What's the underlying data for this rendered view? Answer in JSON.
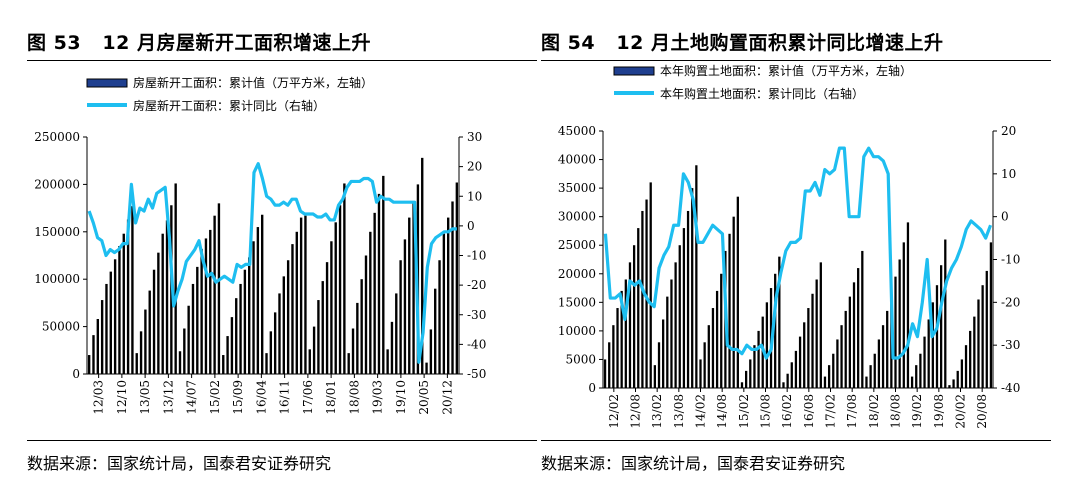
{
  "colors": {
    "bar": "#000000",
    "line": "#1EBEF0",
    "legend_bar_fill": "#1F3F8F"
  },
  "left": {
    "title_num": "图 53",
    "title_text": "12 月房屋新开工面积增速上升",
    "source": "数据来源：国家统计局，国泰君安证券研究",
    "chart_data": {
      "type": "bar+line",
      "legend": [
        "房屋新开工面积：累计值（万平方米，左轴）",
        "房屋新开工面积：累计同比（右轴）"
      ],
      "y_left": {
        "min": 0,
        "max": 250000,
        "ticks": [
          0,
          50000,
          100000,
          150000,
          200000,
          250000
        ]
      },
      "y_right": {
        "min": -50,
        "max": 30,
        "ticks": [
          -50,
          -40,
          -30,
          -20,
          -10,
          0,
          10,
          20,
          30
        ]
      },
      "x_tick_labels": [
        "12/03",
        "12/10",
        "13/05",
        "13/12",
        "14/07",
        "15/02",
        "15/09",
        "16/04",
        "16/11",
        "17/06",
        "18/01",
        "18/08",
        "19/03",
        "19/10",
        "20/05",
        "20/12"
      ],
      "bar_values": [
        20000,
        41000,
        58000,
        78000,
        95000,
        108000,
        121000,
        135000,
        148000,
        163000,
        177000,
        22000,
        45000,
        68000,
        88000,
        110000,
        128000,
        148000,
        162000,
        178000,
        201000,
        24000,
        48000,
        72000,
        95000,
        113000,
        132000,
        143000,
        152000,
        167000,
        180000,
        20000,
        40000,
        60000,
        80000,
        95000,
        110000,
        123000,
        140000,
        155000,
        168000,
        22000,
        45000,
        65000,
        85000,
        103000,
        120000,
        137000,
        150000,
        165000,
        167000,
        26000,
        50000,
        78000,
        98000,
        118000,
        140000,
        160000,
        178000,
        201000,
        22000,
        48000,
        75000,
        100000,
        125000,
        150000,
        170000,
        190000,
        209000,
        26000,
        55000,
        85000,
        120000,
        142000,
        165000,
        181000,
        200000,
        228000,
        12000,
        47000,
        90000,
        120000,
        148000,
        165000,
        182000,
        202000
      ],
      "line_values": [
        5,
        1,
        -4,
        -5,
        -10,
        -8,
        -9,
        -8,
        -6,
        -6,
        14,
        1,
        6,
        5,
        9,
        6,
        11,
        12,
        13,
        -4,
        -27,
        -22,
        -18,
        -12,
        -10,
        -8,
        -5,
        -12,
        -17,
        -16,
        -19,
        -18,
        -17,
        -18,
        -19,
        -13,
        -14,
        -13,
        -13,
        18,
        21,
        16,
        10,
        9,
        7,
        7,
        8,
        7,
        9,
        9,
        5,
        4,
        4,
        4,
        3,
        3,
        4,
        2,
        2,
        7,
        9,
        13,
        15,
        15,
        15,
        16,
        16,
        15,
        8,
        10,
        9,
        9,
        8,
        8,
        8,
        8,
        8,
        8,
        -46,
        -36,
        -14,
        -6,
        -4,
        -3,
        -2,
        -2,
        -1,
        -1
      ]
    }
  },
  "right": {
    "title_num": "图 54",
    "title_text": "12 月土地购置面积累计同比增速上升",
    "source": "数据来源：国家统计局，国泰君安证券研究",
    "chart_data": {
      "type": "bar+line",
      "legend": [
        "本年购置土地面积：累计值（万平方米，左轴）",
        "本年购置土地面积：累计同比（右轴）"
      ],
      "y_left": {
        "min": 0,
        "max": 45000,
        "ticks": [
          0,
          5000,
          10000,
          15000,
          20000,
          25000,
          30000,
          35000,
          40000,
          45000
        ]
      },
      "y_right": {
        "min": -40,
        "max": 20,
        "ticks": [
          -40,
          -30,
          -20,
          -10,
          0,
          10,
          20
        ]
      },
      "x_tick_labels": [
        "12/02",
        "12/08",
        "13/02",
        "13/08",
        "14/02",
        "14/08",
        "15/02",
        "15/08",
        "16/02",
        "16/08",
        "17/02",
        "17/08",
        "18/02",
        "18/08",
        "19/02",
        "19/08",
        "20/02",
        "20/08"
      ],
      "bar_values": [
        5000,
        8000,
        11000,
        14000,
        17000,
        19000,
        22000,
        25000,
        28000,
        31000,
        33000,
        36000,
        4000,
        8000,
        12000,
        16000,
        19000,
        22000,
        25000,
        28000,
        31000,
        35000,
        39000,
        5000,
        8000,
        11000,
        14000,
        17000,
        20000,
        24000,
        27000,
        30000,
        33500,
        1000,
        3000,
        5000,
        7500,
        10000,
        12500,
        15000,
        17500,
        20000,
        23000,
        1000,
        2500,
        4500,
        6500,
        9000,
        11500,
        14000,
        16500,
        19000,
        22000,
        2000,
        4000,
        6000,
        8500,
        11000,
        13500,
        16000,
        18500,
        21000,
        24000,
        2000,
        4000,
        6000,
        8500,
        11000,
        13500,
        16500,
        19500,
        22500,
        25500,
        29000,
        2000,
        4000,
        6000,
        9000,
        12000,
        15000,
        18000,
        21500,
        26000,
        500,
        1500,
        3000,
        5000,
        7500,
        10000,
        12500,
        15500,
        18000,
        20500,
        25500
      ],
      "line_values": [
        -4,
        -19,
        -19,
        -18,
        -24,
        -15,
        -16,
        -15,
        -18,
        -20,
        -21,
        -12,
        -9,
        -7,
        -2,
        -2,
        10,
        8,
        4,
        -6,
        -6,
        -4,
        -2,
        -3,
        -4,
        -30,
        -31,
        -31,
        -32,
        -30,
        -31,
        -31,
        -30,
        -33,
        -31,
        -19,
        -13,
        -8,
        -6,
        -6,
        -5,
        6,
        6,
        8,
        5,
        11,
        10,
        11,
        16,
        16,
        0,
        0,
        0,
        14,
        16,
        14,
        14,
        13,
        10,
        -33,
        -33,
        -32,
        -30,
        -25,
        -28,
        -20,
        -10,
        -28,
        -26,
        -20,
        -15,
        -12,
        -10,
        -7,
        -3,
        -1,
        -2,
        -3,
        -5,
        -2
      ],
      "bar_line_align": "line spans full x range"
    }
  }
}
